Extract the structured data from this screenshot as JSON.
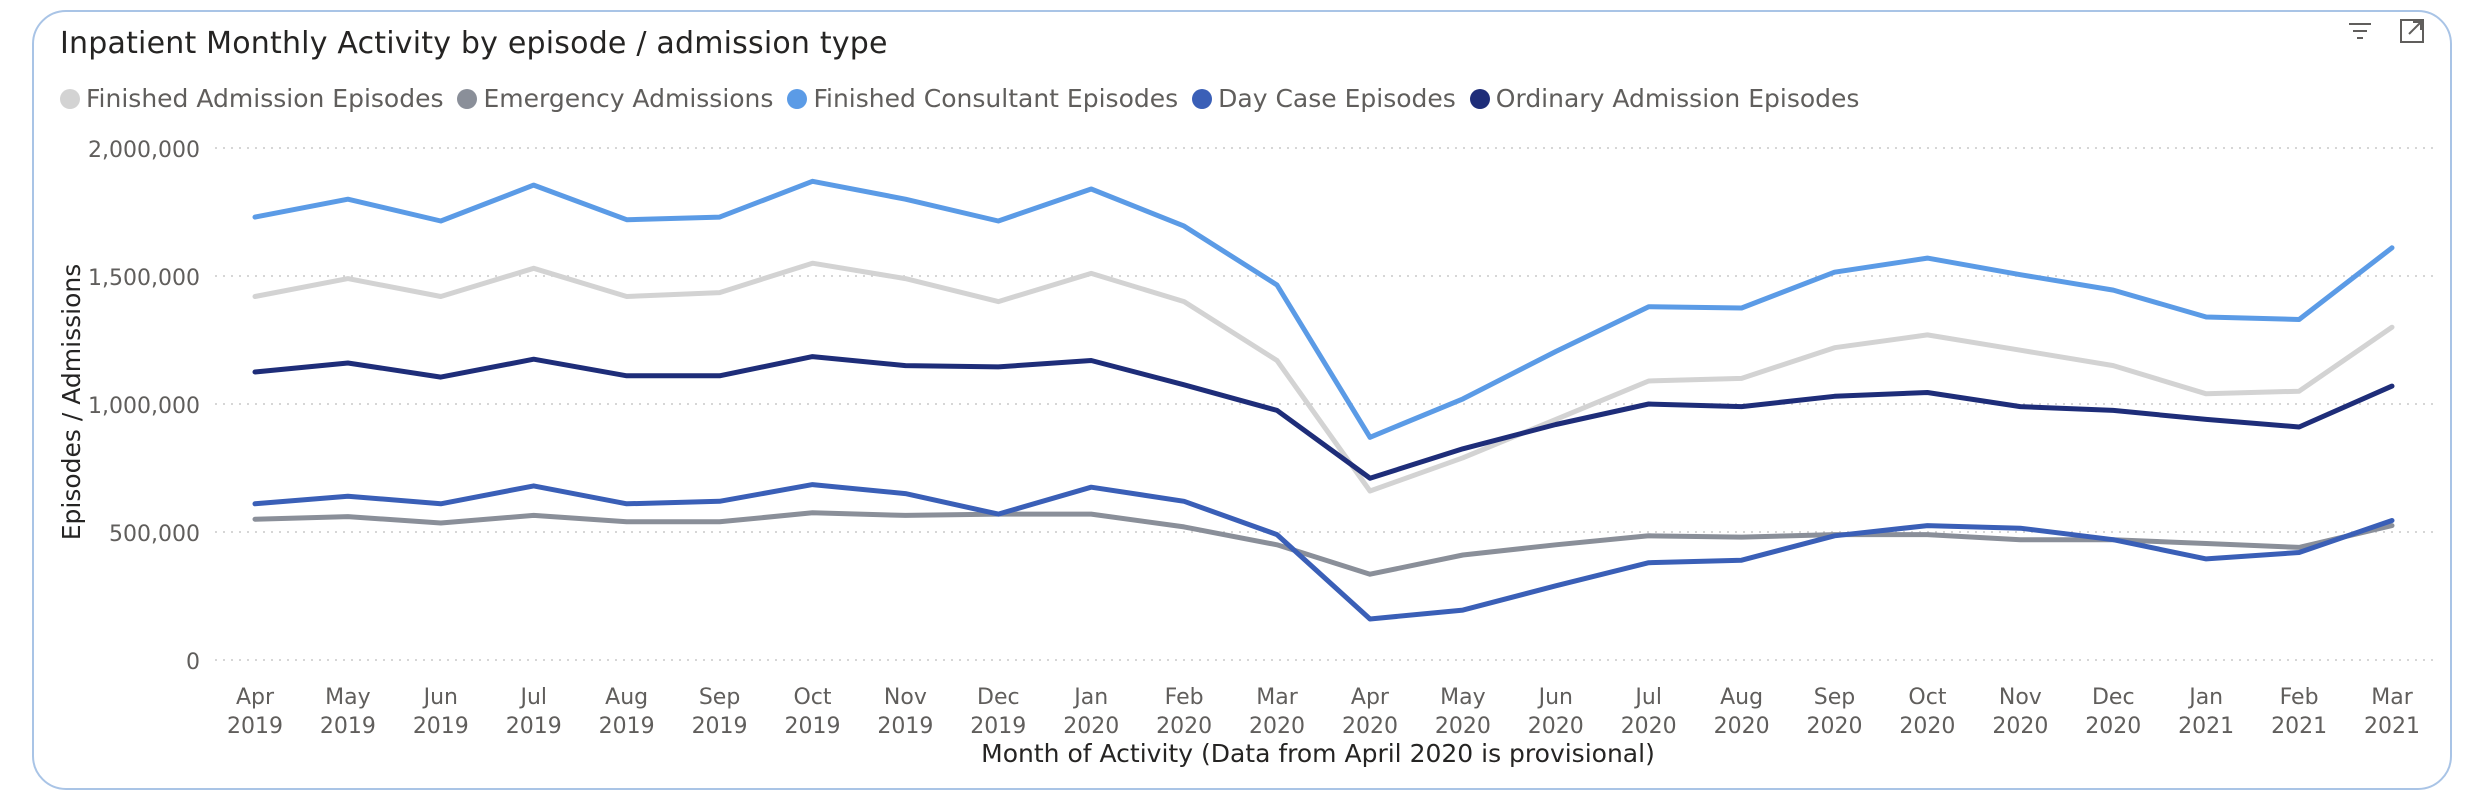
{
  "visual": {
    "title": "Inpatient Monthly Activity by episode / admission type"
  },
  "header_icons": [
    "filter-icon",
    "focus-mode-icon"
  ],
  "chart_data": {
    "type": "line",
    "title": "Inpatient Monthly Activity by episode / admission type",
    "xlabel": "Month of Activity (Data from April 2020 is provisional)",
    "ylabel": "Episodes / Admissions",
    "ylim": [
      0,
      2000000
    ],
    "yticks": [
      "0",
      "500,000",
      "1,000,000",
      "1,500,000",
      "2,000,000"
    ],
    "ytick_values": [
      0,
      500000,
      1000000,
      1500000,
      2000000
    ],
    "grid": true,
    "legend_position": "top-left",
    "categories": [
      {
        "month": "Apr",
        "year": "2019"
      },
      {
        "month": "May",
        "year": "2019"
      },
      {
        "month": "Jun",
        "year": "2019"
      },
      {
        "month": "Jul",
        "year": "2019"
      },
      {
        "month": "Aug",
        "year": "2019"
      },
      {
        "month": "Sep",
        "year": "2019"
      },
      {
        "month": "Oct",
        "year": "2019"
      },
      {
        "month": "Nov",
        "year": "2019"
      },
      {
        "month": "Dec",
        "year": "2019"
      },
      {
        "month": "Jan",
        "year": "2020"
      },
      {
        "month": "Feb",
        "year": "2020"
      },
      {
        "month": "Mar",
        "year": "2020"
      },
      {
        "month": "Apr",
        "year": "2020"
      },
      {
        "month": "May",
        "year": "2020"
      },
      {
        "month": "Jun",
        "year": "2020"
      },
      {
        "month": "Jul",
        "year": "2020"
      },
      {
        "month": "Aug",
        "year": "2020"
      },
      {
        "month": "Sep",
        "year": "2020"
      },
      {
        "month": "Oct",
        "year": "2020"
      },
      {
        "month": "Nov",
        "year": "2020"
      },
      {
        "month": "Dec",
        "year": "2020"
      },
      {
        "month": "Jan",
        "year": "2021"
      },
      {
        "month": "Feb",
        "year": "2021"
      },
      {
        "month": "Mar",
        "year": "2021"
      }
    ],
    "series": [
      {
        "name": "Finished Admission Episodes",
        "color": "#d3d3d3",
        "values": [
          1420000,
          1490000,
          1420000,
          1530000,
          1420000,
          1435000,
          1550000,
          1490000,
          1400000,
          1510000,
          1400000,
          1170000,
          660000,
          790000,
          940000,
          1090000,
          1100000,
          1220000,
          1270000,
          1210000,
          1150000,
          1040000,
          1050000,
          1300000
        ]
      },
      {
        "name": "Emergency Admissions",
        "color": "#8a8f99",
        "values": [
          550000,
          560000,
          535000,
          565000,
          540000,
          540000,
          575000,
          565000,
          570000,
          570000,
          520000,
          450000,
          335000,
          410000,
          450000,
          485000,
          480000,
          490000,
          490000,
          470000,
          470000,
          455000,
          440000,
          525000
        ]
      },
      {
        "name": "Finished Consultant Episodes",
        "color": "#5b9be6",
        "values": [
          1730000,
          1800000,
          1715000,
          1855000,
          1720000,
          1730000,
          1870000,
          1800000,
          1715000,
          1840000,
          1695000,
          1465000,
          870000,
          1020000,
          1205000,
          1380000,
          1375000,
          1515000,
          1570000,
          1505000,
          1445000,
          1340000,
          1330000,
          1610000
        ]
      },
      {
        "name": "Day Case Episodes",
        "color": "#3a5fb7",
        "values": [
          610000,
          640000,
          610000,
          680000,
          610000,
          620000,
          685000,
          650000,
          570000,
          675000,
          620000,
          490000,
          160000,
          195000,
          290000,
          380000,
          390000,
          485000,
          525000,
          515000,
          470000,
          395000,
          420000,
          545000
        ]
      },
      {
        "name": "Ordinary Admission Episodes",
        "color": "#1e2d79",
        "values": [
          1125000,
          1160000,
          1105000,
          1175000,
          1110000,
          1110000,
          1185000,
          1150000,
          1145000,
          1170000,
          1075000,
          975000,
          710000,
          825000,
          920000,
          1000000,
          990000,
          1030000,
          1045000,
          990000,
          975000,
          940000,
          910000,
          1070000
        ]
      }
    ]
  }
}
